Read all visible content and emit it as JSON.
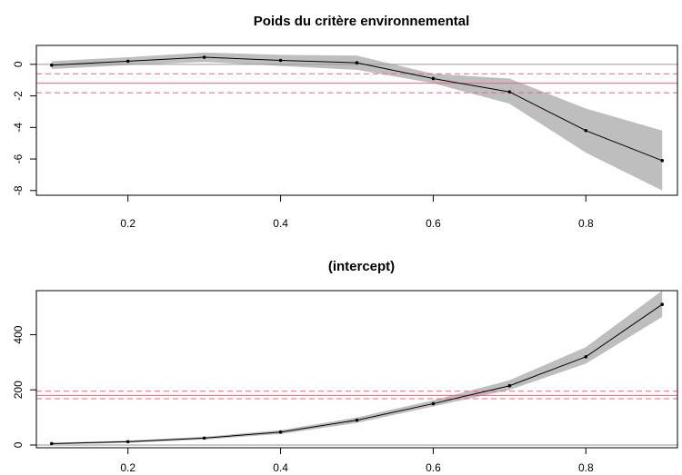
{
  "chart_data": [
    {
      "type": "line",
      "title": "Poids du critère environnemental",
      "xlabel": "",
      "ylabel": "",
      "xlim": [
        0.08,
        0.92
      ],
      "ylim": [
        -8.3,
        1.2
      ],
      "x": [
        0.1,
        0.2,
        0.3,
        0.4,
        0.5,
        0.6,
        0.7,
        0.8,
        0.9
      ],
      "series": [
        {
          "values": [
            -0.05,
            0.2,
            0.45,
            0.25,
            0.1,
            -0.9,
            -1.75,
            -4.2,
            -6.1
          ]
        }
      ],
      "band": {
        "lower": [
          -0.3,
          -0.05,
          0.15,
          -0.1,
          -0.35,
          -1.2,
          -2.5,
          -5.6,
          -8.0
        ],
        "upper": [
          0.2,
          0.45,
          0.75,
          0.6,
          0.55,
          -0.6,
          -0.9,
          -2.8,
          -4.2
        ]
      },
      "hlines": [
        {
          "y": 0,
          "style": "solid",
          "color": "#999999"
        },
        {
          "y": -1.2,
          "style": "solid",
          "color": "#e8657f"
        },
        {
          "y": -0.6,
          "style": "dashed",
          "color": "#e8657f"
        },
        {
          "y": -1.8,
          "style": "dashed",
          "color": "#e8657f"
        }
      ],
      "xticks": [
        0.2,
        0.4,
        0.6,
        0.8
      ],
      "xtick_labels": [
        "0.2",
        "0.4",
        "0.6",
        "0.8"
      ],
      "yticks": [
        0,
        -2,
        -4,
        -6,
        -8
      ],
      "ytick_labels": [
        "0",
        "-2",
        "-4",
        "-6",
        "-8"
      ],
      "grid": false,
      "band_color": "#bebebe",
      "line_color": "#000000"
    },
    {
      "type": "line",
      "title": "(intercept)",
      "xlabel": "",
      "ylabel": "",
      "xlim": [
        0.08,
        0.92
      ],
      "ylim": [
        -10,
        560
      ],
      "x": [
        0.1,
        0.2,
        0.3,
        0.4,
        0.5,
        0.6,
        0.7,
        0.8,
        0.9
      ],
      "series": [
        {
          "values": [
            5,
            12,
            25,
            47,
            90,
            150,
            215,
            320,
            510
          ]
        }
      ],
      "band": {
        "lower": [
          2,
          8,
          20,
          40,
          80,
          140,
          200,
          295,
          465
        ],
        "upper": [
          8,
          16,
          30,
          54,
          100,
          162,
          235,
          355,
          560
        ]
      },
      "hlines": [
        {
          "y": 0,
          "style": "solid",
          "color": "#999999"
        },
        {
          "y": 180,
          "style": "solid",
          "color": "#e8657f"
        },
        {
          "y": 195,
          "style": "dashed",
          "color": "#e8657f"
        },
        {
          "y": 168,
          "style": "dashed",
          "color": "#e8657f"
        }
      ],
      "xticks": [
        0.2,
        0.4,
        0.6,
        0.8
      ],
      "xtick_labels": [
        "0.2",
        "0.4",
        "0.6",
        "0.8"
      ],
      "yticks": [
        0,
        200,
        400
      ],
      "ytick_labels": [
        "0",
        "200",
        "400"
      ],
      "grid": false,
      "band_color": "#bebebe",
      "line_color": "#000000"
    }
  ]
}
